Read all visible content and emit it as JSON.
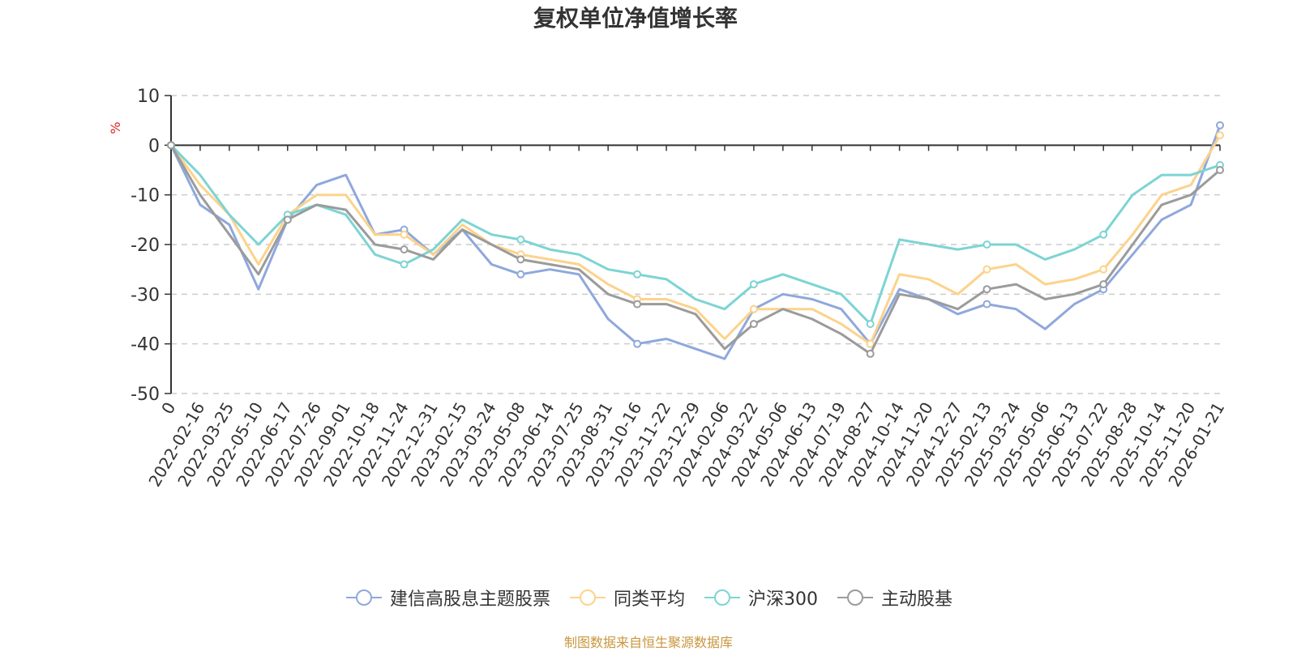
{
  "chart_data": {
    "type": "line",
    "title": "复权单位净值增长率",
    "ylabel": "%",
    "xlabel": "",
    "ylim": [
      -50,
      10
    ],
    "yticks": [
      10,
      0,
      -10,
      -20,
      -30,
      -40,
      -50
    ],
    "grid": true,
    "legend_position": "bottom",
    "source_note": "制图数据来自恒生聚源数据库",
    "categories": [
      "0",
      "2022-02-16",
      "2022-03-25",
      "2022-05-10",
      "2022-06-17",
      "2022-07-26",
      "2022-09-01",
      "2022-10-18",
      "2022-11-24",
      "2022-12-31",
      "2023-02-15",
      "2023-03-24",
      "2023-05-08",
      "2023-06-14",
      "2023-07-25",
      "2023-08-31",
      "2023-10-16",
      "2023-11-22",
      "2023-12-29",
      "2024-02-06",
      "2024-03-22",
      "2024-05-06",
      "2024-06-13",
      "2024-07-19",
      "2024-08-27",
      "2024-10-14",
      "2024-11-20",
      "2024-12-27",
      "2025-02-13",
      "2025-03-24",
      "2025-05-06",
      "2025-06-13",
      "2025-07-22",
      "2025-08-28",
      "2025-10-14",
      "2025-11-20",
      "2026-01-21"
    ],
    "series": [
      {
        "name": "建信高股息主题股票",
        "color": "#8fa8dc",
        "values": [
          0,
          -12,
          -16,
          -29,
          -15,
          -8,
          -6,
          -18,
          -17,
          -22,
          -17,
          -24,
          -26,
          -25,
          -26,
          -35,
          -40,
          -39,
          -41,
          -43,
          -33,
          -30,
          -31,
          -33,
          -40,
          -29,
          -31,
          -34,
          -32,
          -33,
          -37,
          -32,
          -29,
          -22,
          -15,
          -12,
          4
        ]
      },
      {
        "name": "同类平均",
        "color": "#fcd38b",
        "values": [
          0,
          -8,
          -14,
          -24,
          -14,
          -10,
          -10,
          -18,
          -18,
          -22,
          -16,
          -20,
          -22,
          -23,
          -24,
          -28,
          -31,
          -31,
          -33,
          -39,
          -33,
          -33,
          -33,
          -36,
          -40,
          -26,
          -27,
          -30,
          -25,
          -24,
          -28,
          -27,
          -25,
          -18,
          -10,
          -8,
          2
        ]
      },
      {
        "name": "沪深300",
        "color": "#7dd4d4",
        "values": [
          0,
          -6,
          -14,
          -20,
          -14,
          -12,
          -14,
          -22,
          -24,
          -21,
          -15,
          -18,
          -19,
          -21,
          -22,
          -25,
          -26,
          -27,
          -31,
          -33,
          -28,
          -26,
          -28,
          -30,
          -36,
          -19,
          -20,
          -21,
          -20,
          -20,
          -23,
          -21,
          -18,
          -10,
          -6,
          -6,
          -4
        ]
      },
      {
        "name": "主动股基",
        "color": "#9b9b9b",
        "values": [
          0,
          -10,
          -18,
          -26,
          -15,
          -12,
          -13,
          -20,
          -21,
          -23,
          -17,
          -20,
          -23,
          -24,
          -25,
          -30,
          -32,
          -32,
          -34,
          -41,
          -36,
          -33,
          -35,
          -38,
          -42,
          -30,
          -31,
          -33,
          -29,
          -28,
          -31,
          -30,
          -28,
          -20,
          -12,
          -10,
          -5
        ]
      }
    ]
  }
}
